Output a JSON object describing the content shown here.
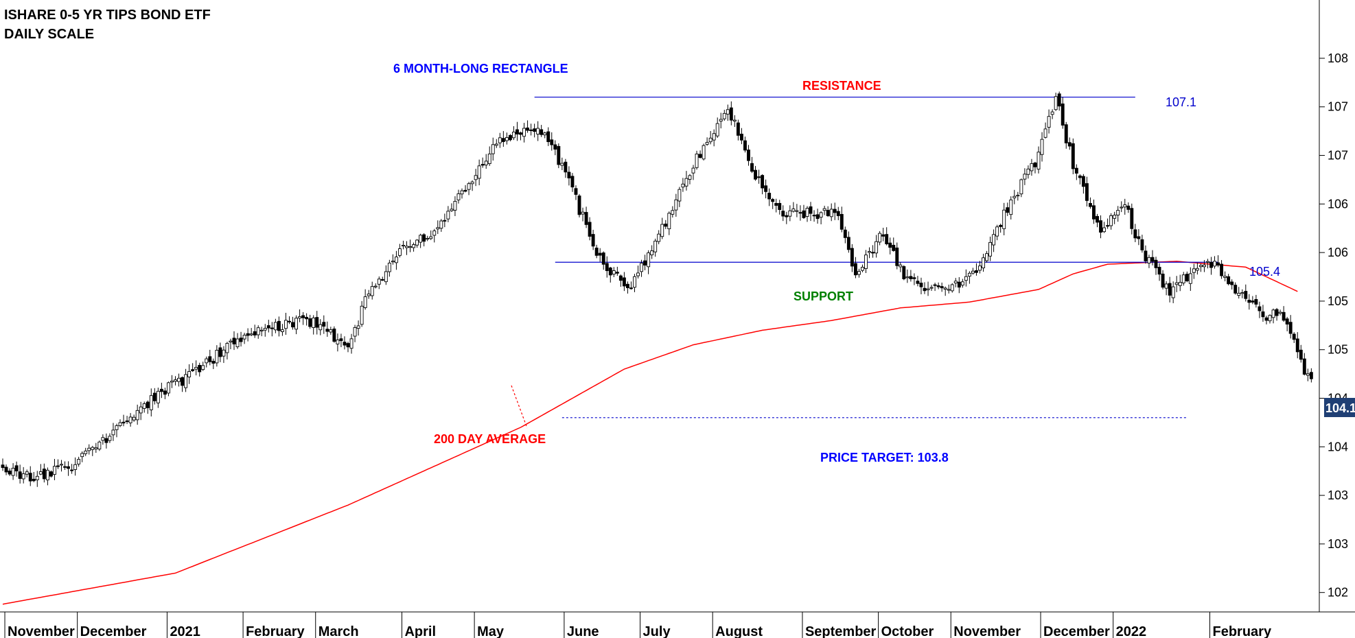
{
  "chart_data": {
    "type": "candlestick",
    "title": "ISHARE 0-5 YR TIPS BOND ETF",
    "subtitle": "DAILY SCALE",
    "ylim": [
      101.8,
      108.1
    ],
    "y_axis_position": "right",
    "y_tick_values": [
      102.0,
      102.5,
      103.0,
      103.5,
      104.0,
      104.5,
      105.0,
      105.5,
      106.0,
      106.5,
      107.0,
      107.5
    ],
    "y_tick_labels": [
      "102",
      "103",
      "103",
      "104",
      "104",
      "105",
      "105",
      "106",
      "106",
      "107",
      "107",
      "108"
    ],
    "last_price_label": "104.1",
    "last_price_value": 104.1,
    "x_labels": [
      "November",
      "December",
      "2021",
      "February",
      "March",
      "April",
      "May",
      "June",
      "July",
      "August",
      "September",
      "October",
      "November",
      "December",
      "2022",
      "February"
    ],
    "anchors": [
      [
        0,
        103.3
      ],
      [
        8,
        103.18
      ],
      [
        20,
        103.3
      ],
      [
        30,
        103.6
      ],
      [
        45,
        104.05
      ],
      [
        55,
        104.25
      ],
      [
        68,
        104.6
      ],
      [
        80,
        104.75
      ],
      [
        90,
        104.8
      ],
      [
        100,
        104.5
      ],
      [
        106,
        105.1
      ],
      [
        115,
        105.5
      ],
      [
        125,
        105.7
      ],
      [
        135,
        106.2
      ],
      [
        142,
        106.6
      ],
      [
        155,
        106.8
      ],
      [
        162,
        106.4
      ],
      [
        172,
        105.5
      ],
      [
        181,
        105.1
      ],
      [
        192,
        105.8
      ],
      [
        200,
        106.4
      ],
      [
        210,
        107.0
      ],
      [
        218,
        106.3
      ],
      [
        225,
        105.9
      ],
      [
        233,
        105.9
      ],
      [
        242,
        105.9
      ],
      [
        247,
        105.3
      ],
      [
        255,
        105.7
      ],
      [
        262,
        105.2
      ],
      [
        272,
        105.1
      ],
      [
        282,
        105.3
      ],
      [
        290,
        105.9
      ],
      [
        300,
        106.5
      ],
      [
        305,
        107.1
      ],
      [
        310,
        106.4
      ],
      [
        318,
        105.7
      ],
      [
        325,
        106.0
      ],
      [
        330,
        105.5
      ],
      [
        338,
        105.1
      ],
      [
        345,
        105.3
      ],
      [
        350,
        105.4
      ],
      [
        358,
        105.1
      ],
      [
        366,
        104.8
      ],
      [
        370,
        104.9
      ],
      [
        375,
        104.5
      ],
      [
        377,
        104.25
      ],
      [
        379,
        104.2
      ]
    ],
    "ma200": [
      [
        0,
        101.88
      ],
      [
        50,
        102.2
      ],
      [
        100,
        102.9
      ],
      [
        150,
        103.7
      ],
      [
        180,
        104.3
      ],
      [
        200,
        104.55
      ],
      [
        220,
        104.7
      ],
      [
        240,
        104.8
      ],
      [
        260,
        104.93
      ],
      [
        280,
        104.99
      ],
      [
        300,
        105.12
      ],
      [
        310,
        105.28
      ],
      [
        320,
        105.38
      ],
      [
        340,
        105.41
      ],
      [
        360,
        105.35
      ],
      [
        375,
        105.1
      ]
    ],
    "lines": {
      "resistance": {
        "value": 107.1,
        "x_from": 154,
        "x_to": 328,
        "label": "107.1"
      },
      "support": {
        "value": 105.4,
        "x_from": 160,
        "x_to": 352,
        "label": "105.4"
      },
      "target": {
        "value": 103.8,
        "x_from": 162,
        "x_to": 343
      }
    },
    "annotations": {
      "rectangle": "6 MONTH-LONG RECTANGLE",
      "resistance": "RESISTANCE",
      "support": "SUPPORT",
      "ma": "200 DAY AVERAGE",
      "target": "PRICE TARGET: 103.8"
    },
    "colors": {
      "candle": "#000000",
      "ma": "#ff0000",
      "lines": "#0000cc",
      "rectangle_text": "#0000ff",
      "resistance_text": "#ff0000",
      "support_text": "#008000",
      "ma_text": "#ff0000",
      "target_text": "#0000ff",
      "price_box": "#1f3f74"
    }
  }
}
